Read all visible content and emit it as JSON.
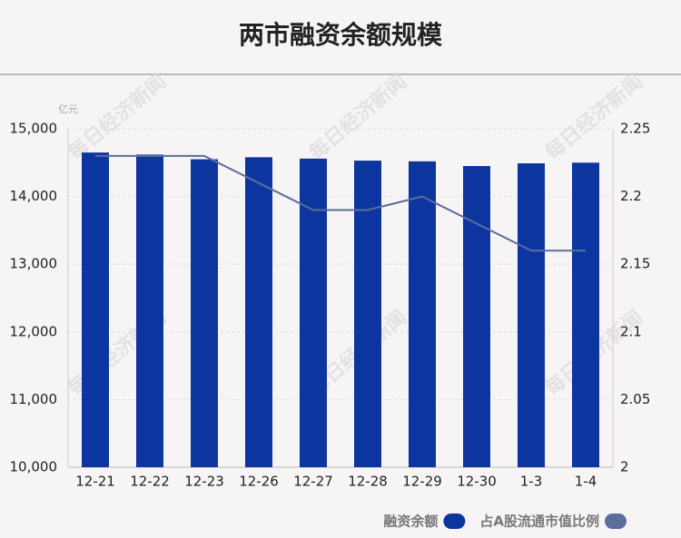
{
  "chart_data": {
    "type": "bar_line",
    "title": "两市融资余额规模",
    "y_unit": "亿元",
    "watermark": "每日经济新闻",
    "categories": [
      "12-21",
      "12-22",
      "12-23",
      "12-26",
      "12-27",
      "12-28",
      "12-29",
      "12-30",
      "1-3",
      "1-4"
    ],
    "series": [
      {
        "name": "融资余额",
        "color": "#0d35a0",
        "type": "bar",
        "values": [
          14650,
          14620,
          14550,
          14580,
          14560,
          14530,
          14520,
          14450,
          14490,
          14500
        ]
      },
      {
        "name": "占A股流通市值比例",
        "color": "#5a6e9c",
        "type": "line",
        "axis": "y2",
        "values": [
          2.23,
          2.23,
          2.23,
          2.21,
          2.19,
          2.19,
          2.2,
          2.18,
          2.16,
          2.16
        ]
      }
    ],
    "ylim": [
      10000,
      15000
    ],
    "yticks": [
      {
        "value": 10000,
        "label": "10,000"
      },
      {
        "value": 11000,
        "label": "11,000"
      },
      {
        "value": 12000,
        "label": "12,000"
      },
      {
        "value": 13000,
        "label": "13,000"
      },
      {
        "value": 14000,
        "label": "14,000"
      },
      {
        "value": 15000,
        "label": "15,000"
      }
    ],
    "y2lim": [
      2,
      2.25
    ],
    "y2ticks": [
      2,
      2.05,
      2.1,
      2.15,
      2.2,
      2.25
    ],
    "grid": true,
    "legend": "bottom-right"
  }
}
